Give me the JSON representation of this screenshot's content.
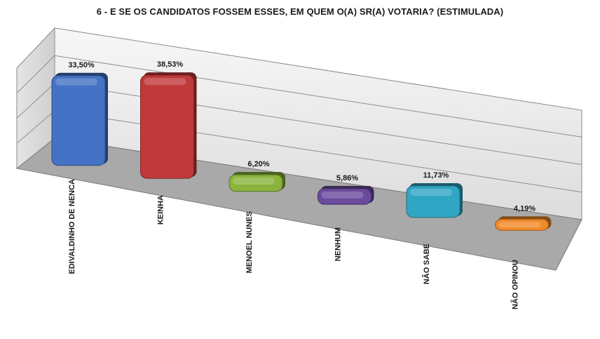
{
  "chart_data": {
    "type": "bar",
    "title": "6 - E SE OS CANDIDATOS FOSSEM ESSES, EM QUEM O(A) SR(A) VOTARIA? (ESTIMULADA)",
    "categories": [
      "EDIVALDINHO DE NENCA",
      "KEINHA",
      "MENOEL NUNES",
      "NENHUM",
      "NÃO SABE",
      "NÃO OPINOU"
    ],
    "values": [
      33.5,
      38.53,
      6.2,
      5.86,
      11.73,
      4.19
    ],
    "value_labels": [
      "33,50%",
      "38,53%",
      "6,20%",
      "5,86%",
      "11,73%",
      "4,19%"
    ],
    "ylim": [
      0,
      40
    ],
    "grid": true,
    "legend": "none",
    "colors": [
      "#4472c4",
      "#c0393b",
      "#8bb33c",
      "#6a4a9c",
      "#31a6c4",
      "#f08a2a"
    ]
  }
}
